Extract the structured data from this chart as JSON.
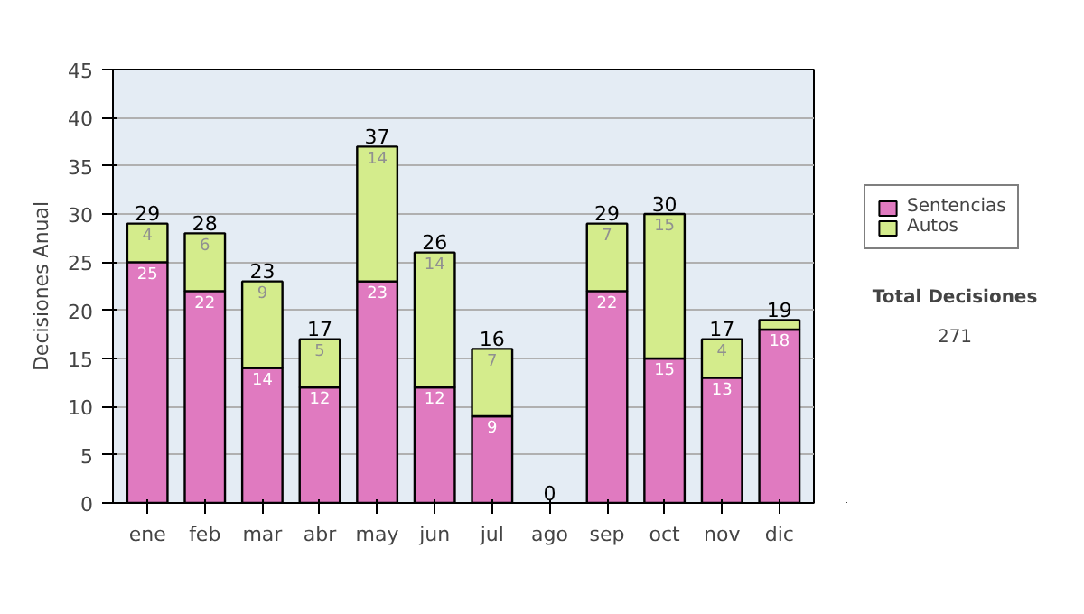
{
  "chart_data": {
    "type": "bar",
    "stacked": true,
    "ylabel": "Decisiones Anual",
    "categories": [
      "ene",
      "feb",
      "mar",
      "abr",
      "may",
      "jun",
      "jul",
      "ago",
      "sep",
      "oct",
      "nov",
      "dic"
    ],
    "series": [
      {
        "name": "Sentencias",
        "color": "#e07ac0",
        "values": [
          25,
          22,
          14,
          12,
          23,
          12,
          9,
          0,
          22,
          15,
          13,
          18
        ],
        "value_labels": [
          "25",
          "22",
          "14",
          "12",
          "23",
          "12",
          "9",
          null,
          "22",
          "15",
          "13",
          "18"
        ]
      },
      {
        "name": "Autos",
        "color": "#d4ec8c",
        "values": [
          4,
          6,
          9,
          5,
          14,
          14,
          7,
          0,
          7,
          15,
          4,
          1
        ],
        "value_labels": [
          "4",
          "6",
          "9",
          "5",
          "14",
          "14",
          "7",
          null,
          "7",
          "15",
          "4",
          null
        ]
      }
    ],
    "totals": [
      "29",
      "28",
      "23",
      "17",
      "37",
      "26",
      "16",
      "0",
      "29",
      "30",
      "17",
      "19"
    ],
    "ylim": [
      0,
      45
    ],
    "yticks": [
      0,
      5,
      10,
      15,
      20,
      25,
      30,
      35,
      40,
      45
    ],
    "grid": "y",
    "legend": "right",
    "annotations": [
      "Total Decisiones",
      "271"
    ]
  }
}
